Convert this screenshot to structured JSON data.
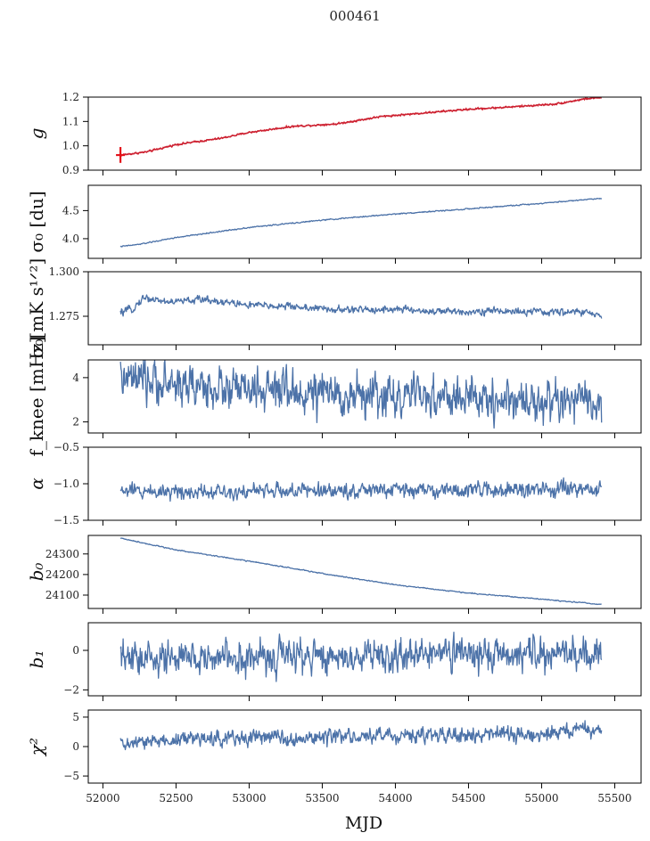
{
  "chart_data": {
    "type": "line",
    "title": "000461",
    "xlabel": "MJD",
    "xlim": [
      51900,
      55680
    ],
    "x_range": [
      52120,
      55410
    ],
    "xticks": [
      52000,
      52500,
      53000,
      53500,
      54000,
      54500,
      55000,
      55500
    ],
    "xtick_labels": [
      "52000",
      "52500",
      "53000",
      "53500",
      "54000",
      "54500",
      "55000",
      "55500"
    ],
    "colors": {
      "series": "#4c72a8",
      "overlay": "#e3121b"
    },
    "panels": [
      {
        "id": "g",
        "ylabel": "g",
        "ylim": [
          0.9,
          1.2
        ],
        "yticks": [
          0.9,
          1.0,
          1.1,
          1.2
        ],
        "ytick_labels": [
          "0.9",
          "1.0",
          "1.1",
          "1.2"
        ],
        "anchors": [
          [
            52120,
            0.962
          ],
          [
            52300,
            0.975
          ],
          [
            52500,
            1.005
          ],
          [
            52800,
            1.03
          ],
          [
            53000,
            1.055
          ],
          [
            53300,
            1.08
          ],
          [
            53600,
            1.09
          ],
          [
            53900,
            1.12
          ],
          [
            54200,
            1.135
          ],
          [
            54500,
            1.15
          ],
          [
            54800,
            1.16
          ],
          [
            55100,
            1.172
          ],
          [
            55300,
            1.193
          ],
          [
            55410,
            1.199
          ]
        ],
        "noise": 0.002,
        "overlay": {
          "name": "fit",
          "color": "#e3121b",
          "same_as_series": true,
          "bar_x": 52120,
          "bar_y": [
            0.93,
            0.995
          ]
        }
      },
      {
        "id": "sigma0_du",
        "ylabel": "σ₀ [du]",
        "ylim": [
          3.65,
          4.95
        ],
        "yticks": [
          4.0,
          4.5
        ],
        "ytick_labels": [
          "4.0",
          "4.5"
        ],
        "anchors": [
          [
            52120,
            3.86
          ],
          [
            52250,
            3.9
          ],
          [
            52500,
            4.02
          ],
          [
            53000,
            4.2
          ],
          [
            53500,
            4.33
          ],
          [
            54000,
            4.44
          ],
          [
            54500,
            4.53
          ],
          [
            55000,
            4.63
          ],
          [
            55410,
            4.72
          ]
        ],
        "noise": 0.006
      },
      {
        "id": "sigma0_mk",
        "ylabel": "σ₀[mK s¹ᐟ²]",
        "ylim": [
          1.259,
          1.3
        ],
        "yticks": [
          1.275,
          1.3
        ],
        "ytick_labels": [
          "1.275",
          "1.300"
        ],
        "anchors": [
          [
            52120,
            1.2768
          ],
          [
            52200,
            1.279
          ],
          [
            52280,
            1.2855
          ],
          [
            52450,
            1.283
          ],
          [
            52700,
            1.2845
          ],
          [
            53000,
            1.2812
          ],
          [
            53300,
            1.2805
          ],
          [
            53600,
            1.2785
          ],
          [
            54000,
            1.279
          ],
          [
            54300,
            1.2775
          ],
          [
            54700,
            1.278
          ],
          [
            55000,
            1.2772
          ],
          [
            55300,
            1.2775
          ],
          [
            55410,
            1.2742
          ]
        ],
        "noise": 0.0012
      },
      {
        "id": "fknee",
        "ylabel": "f_knee [mHz]",
        "ylim": [
          1.5,
          4.8
        ],
        "yticks": [
          2,
          4
        ],
        "ytick_labels": [
          "2",
          "4"
        ],
        "anchors": [
          [
            52120,
            3.9
          ],
          [
            52500,
            3.7
          ],
          [
            53000,
            3.4
          ],
          [
            53500,
            3.25
          ],
          [
            54000,
            3.15
          ],
          [
            54500,
            3.05
          ],
          [
            55000,
            2.95
          ],
          [
            55410,
            2.8
          ]
        ],
        "noise": 0.55
      },
      {
        "id": "alpha",
        "ylabel": "α",
        "ylim": [
          -1.5,
          -0.5
        ],
        "yticks": [
          -1.5,
          -1.0,
          -0.5
        ],
        "ytick_labels": [
          "−1.5",
          "−1.0",
          "−0.5"
        ],
        "anchors": [
          [
            52120,
            -1.1
          ],
          [
            53000,
            -1.1
          ],
          [
            54000,
            -1.09
          ],
          [
            55410,
            -1.08
          ]
        ],
        "noise": 0.06
      },
      {
        "id": "b0",
        "ylabel": "b₀",
        "ylim": [
          24035,
          24390
        ],
        "yticks": [
          24100,
          24200,
          24300
        ],
        "ytick_labels": [
          "24100",
          "24200",
          "24300"
        ],
        "anchors": [
          [
            52120,
            24377
          ],
          [
            52300,
            24350
          ],
          [
            52500,
            24320
          ],
          [
            53000,
            24265
          ],
          [
            53500,
            24205
          ],
          [
            54000,
            24150
          ],
          [
            54500,
            24110
          ],
          [
            55000,
            24080
          ],
          [
            55410,
            24055
          ]
        ],
        "noise": 1.5
      },
      {
        "id": "b1",
        "ylabel": "b₁",
        "ylim": [
          -2.3,
          1.4
        ],
        "yticks": [
          -2,
          0
        ],
        "ytick_labels": [
          "−2",
          "0"
        ],
        "anchors": [
          [
            52120,
            -0.45
          ],
          [
            53000,
            -0.35
          ],
          [
            54000,
            -0.25
          ],
          [
            55410,
            -0.2
          ]
        ],
        "noise": 0.5
      },
      {
        "id": "chi2",
        "ylabel": "χ²",
        "ylim": [
          -6.2,
          6.2
        ],
        "yticks": [
          -5,
          0,
          5
        ],
        "ytick_labels": [
          "−5",
          "0",
          "5"
        ],
        "anchors": [
          [
            52120,
            0.3
          ],
          [
            52500,
            1.2
          ],
          [
            53000,
            1.6
          ],
          [
            53500,
            1.5
          ],
          [
            54000,
            1.9
          ],
          [
            54500,
            1.8
          ],
          [
            55000,
            2.1
          ],
          [
            55410,
            3.0
          ]
        ],
        "noise": 0.75
      }
    ]
  }
}
